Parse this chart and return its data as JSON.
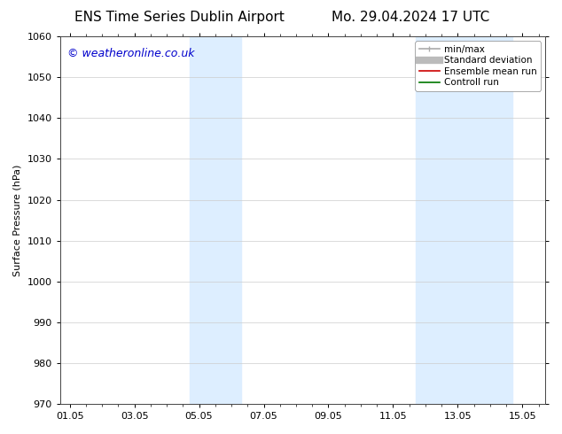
{
  "title_left": "ENS Time Series Dublin Airport",
  "title_right": "Mo. 29.04.2024 17 UTC",
  "ylabel": "Surface Pressure (hPa)",
  "ylim": [
    970,
    1060
  ],
  "yticks": [
    970,
    980,
    990,
    1000,
    1010,
    1020,
    1030,
    1040,
    1050,
    1060
  ],
  "xtick_labels": [
    "01.05",
    "03.05",
    "05.05",
    "07.05",
    "09.05",
    "11.05",
    "13.05",
    "15.05"
  ],
  "xtick_positions": [
    0,
    2,
    4,
    6,
    8,
    10,
    12,
    14
  ],
  "xlim": [
    -0.3,
    14.7
  ],
  "shaded_regions": [
    {
      "start": 3.7,
      "end": 5.3,
      "color": "#ddeeff"
    },
    {
      "start": 10.7,
      "end": 12.3,
      "color": "#ddeeff"
    },
    {
      "start": 12.3,
      "end": 13.7,
      "color": "#ddeeff"
    }
  ],
  "watermark_text": "© weatheronline.co.uk",
  "watermark_color": "#0000cc",
  "watermark_fontsize": 9,
  "legend_entries": [
    {
      "label": "min/max",
      "color": "#aaaaaa",
      "lw": 1.2
    },
    {
      "label": "Standard deviation",
      "color": "#bbbbbb",
      "lw": 6
    },
    {
      "label": "Ensemble mean run",
      "color": "#cc0000",
      "lw": 1.2
    },
    {
      "label": "Controll run",
      "color": "#007700",
      "lw": 1.2
    }
  ],
  "bg_color": "#ffffff",
  "grid_color": "#cccccc",
  "title_fontsize": 11,
  "axis_fontsize": 8,
  "tick_fontsize": 8,
  "legend_fontsize": 7.5
}
